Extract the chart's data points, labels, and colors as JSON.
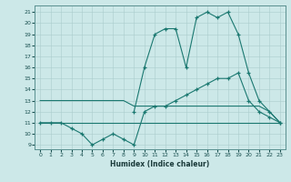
{
  "xlabel": "Humidex (Indice chaleur)",
  "bg_color": "#cce8e8",
  "grid_color": "#aacccc",
  "line_color": "#1a7870",
  "xlim": [
    -0.5,
    23.5
  ],
  "ylim": [
    8.6,
    21.6
  ],
  "yticks": [
    9,
    10,
    11,
    12,
    13,
    14,
    15,
    16,
    17,
    18,
    19,
    20,
    21
  ],
  "xticks": [
    0,
    1,
    2,
    3,
    4,
    5,
    6,
    7,
    8,
    9,
    10,
    11,
    12,
    13,
    14,
    15,
    16,
    17,
    18,
    19,
    20,
    21,
    22,
    23
  ],
  "series": [
    {
      "x": [
        9,
        10,
        11,
        12,
        13,
        14,
        15,
        16,
        17,
        18,
        19,
        20,
        21,
        22,
        23
      ],
      "y": [
        12,
        16,
        19,
        19.5,
        19.5,
        16,
        20.5,
        21,
        20.5,
        21,
        19,
        15.5,
        13,
        12,
        11
      ],
      "marker": true
    },
    {
      "x": [
        0,
        1,
        2,
        3,
        4,
        5,
        6,
        7,
        8,
        9,
        10,
        11,
        12,
        13,
        14,
        15,
        16,
        17,
        18,
        19,
        20,
        21,
        22,
        23
      ],
      "y": [
        11,
        11,
        11,
        10.5,
        10,
        9,
        9.5,
        10,
        9.5,
        9,
        12,
        12.5,
        12.5,
        13,
        13.5,
        14,
        14.5,
        15,
        15,
        15.5,
        13,
        12,
        11.5,
        11
      ],
      "marker": true
    },
    {
      "x": [
        0,
        1,
        2,
        3,
        4,
        5,
        6,
        7,
        8,
        9,
        10,
        11,
        12,
        13,
        14,
        15,
        16,
        17,
        18,
        19,
        20,
        21,
        22,
        23
      ],
      "y": [
        13,
        13,
        13,
        13,
        13,
        13,
        13,
        13,
        13,
        12.5,
        12.5,
        12.5,
        12.5,
        12.5,
        12.5,
        12.5,
        12.5,
        12.5,
        12.5,
        12.5,
        12.5,
        12.5,
        12,
        11
      ],
      "marker": false
    },
    {
      "x": [
        0,
        1,
        2,
        3,
        4,
        5,
        6,
        7,
        8,
        9,
        10,
        11,
        12,
        13,
        14,
        15,
        16,
        17,
        18,
        19,
        20,
        21,
        22,
        23
      ],
      "y": [
        11,
        11,
        11,
        11,
        11,
        11,
        11,
        11,
        11,
        11,
        11,
        11,
        11,
        11,
        11,
        11,
        11,
        11,
        11,
        11,
        11,
        11,
        11,
        11
      ],
      "marker": false
    }
  ]
}
